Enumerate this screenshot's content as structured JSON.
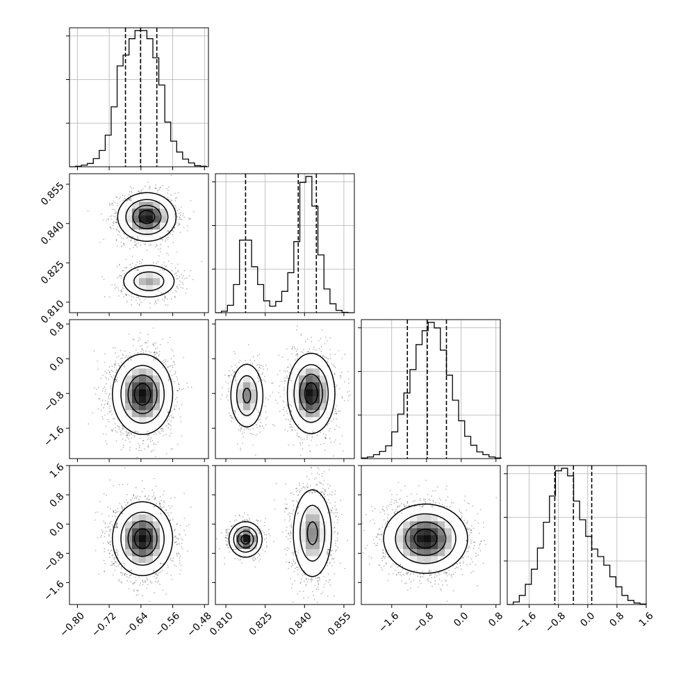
{
  "chart_data": {
    "type": "corner",
    "parameters": [
      {
        "range": [
          -0.82,
          -0.47
        ],
        "ticks": [
          -0.8,
          -0.72,
          -0.64,
          -0.56,
          -0.48
        ],
        "tick_labels": [
          "−0.80",
          "−0.72",
          "−0.64",
          "−0.56",
          "−0.48"
        ]
      },
      {
        "range": [
          0.806,
          0.859
        ],
        "ticks": [
          0.81,
          0.825,
          0.84,
          0.855
        ],
        "tick_labels": [
          "0.810",
          "0.825",
          "0.840",
          "0.855"
        ]
      },
      {
        "range": [
          -2.3,
          0.9
        ],
        "ticks": [
          -1.6,
          -0.8,
          0.0,
          0.8
        ],
        "tick_labels": [
          "−1.6",
          "−0.8",
          "0.0",
          "0.8"
        ]
      },
      {
        "range": [
          -2.2,
          1.6
        ],
        "ticks": [
          -1.6,
          -0.8,
          0.0,
          0.8,
          1.6
        ],
        "tick_labels": [
          "−1.6",
          "−0.8",
          "0.0",
          "0.8",
          "1.6"
        ]
      }
    ],
    "histograms": [
      {
        "param": 0,
        "bins": [
          -0.82,
          -0.805,
          -0.79,
          -0.775,
          -0.76,
          -0.745,
          -0.73,
          -0.715,
          -0.7,
          -0.685,
          -0.67,
          -0.655,
          -0.64,
          -0.625,
          -0.61,
          -0.595,
          -0.58,
          -0.565,
          -0.55,
          -0.535,
          -0.52,
          -0.505,
          -0.49,
          -0.475
        ],
        "counts": [
          0,
          1,
          3,
          6,
          15,
          30,
          58,
          110,
          185,
          205,
          235,
          250,
          250,
          235,
          200,
          150,
          82,
          47,
          27,
          14,
          7,
          2,
          1
        ],
        "quantiles": [
          -0.679,
          -0.641,
          -0.6
        ]
      },
      {
        "param": 1,
        "bins": [
          0.806,
          0.8083,
          0.8106,
          0.8129,
          0.8152,
          0.8175,
          0.8198,
          0.8221,
          0.8244,
          0.8267,
          0.829,
          0.8313,
          0.8336,
          0.8359,
          0.8382,
          0.8405,
          0.8428,
          0.8451,
          0.8474,
          0.8497,
          0.852,
          0.8543,
          0.8566,
          0.859
        ],
        "counts": [
          0,
          5,
          25,
          95,
          245,
          245,
          155,
          95,
          40,
          22,
          38,
          72,
          135,
          240,
          440,
          460,
          360,
          195,
          80,
          30,
          8,
          1,
          0
        ],
        "quantiles": [
          0.8175,
          0.8376,
          0.8445
        ]
      },
      {
        "param": 2,
        "bins": [
          -2.3,
          -2.16,
          -2.02,
          -1.88,
          -1.74,
          -1.6,
          -1.46,
          -1.32,
          -1.18,
          -1.04,
          -0.9,
          -0.76,
          -0.62,
          -0.48,
          -0.34,
          -0.2,
          -0.06,
          0.08,
          0.22,
          0.36,
          0.5,
          0.64,
          0.78,
          0.92
        ],
        "counts": [
          1,
          3,
          7,
          13,
          23,
          48,
          80,
          118,
          160,
          205,
          230,
          245,
          235,
          195,
          150,
          105,
          68,
          40,
          24,
          12,
          7,
          3,
          1
        ],
        "quantiles": [
          -1.24,
          -0.78,
          -0.34
        ]
      },
      {
        "param": 3,
        "bins": [
          -2.2,
          -2.035,
          -1.87,
          -1.705,
          -1.54,
          -1.375,
          -1.21,
          -1.045,
          -0.88,
          -0.715,
          -0.55,
          -0.385,
          -0.22,
          -0.055,
          0.11,
          0.275,
          0.44,
          0.605,
          0.77,
          0.935,
          1.1,
          1.265,
          1.43,
          1.6
        ],
        "counts": [
          0,
          5,
          18,
          40,
          70,
          112,
          163,
          215,
          265,
          270,
          255,
          205,
          168,
          135,
          110,
          95,
          78,
          55,
          35,
          18,
          8,
          3,
          1
        ],
        "quantiles": [
          -0.9,
          -0.39,
          0.11
        ]
      }
    ],
    "pairs": [
      {
        "x": 0,
        "y": 1,
        "clusters": [
          {
            "cx": -0.625,
            "cy": 0.8425,
            "sx": 0.035,
            "sy": 0.0044,
            "weight": 0.7
          },
          {
            "cx": -0.62,
            "cy": 0.818,
            "sx": 0.035,
            "sy": 0.0033,
            "weight": 0.3
          }
        ]
      },
      {
        "x": 0,
        "y": 2,
        "clusters": [
          {
            "cx": -0.636,
            "cy": -0.82,
            "sx": 0.036,
            "sy": 0.44,
            "weight": 1.0
          }
        ]
      },
      {
        "x": 1,
        "y": 2,
        "clusters": [
          {
            "cx": 0.818,
            "cy": -0.85,
            "sx": 0.0032,
            "sy": 0.38,
            "weight": 0.3
          },
          {
            "cx": 0.8425,
            "cy": -0.8,
            "sx": 0.0043,
            "sy": 0.44,
            "weight": 0.7
          }
        ]
      },
      {
        "x": 0,
        "y": 3,
        "clusters": [
          {
            "cx": -0.636,
            "cy": -0.4,
            "sx": 0.036,
            "sy": 0.48,
            "weight": 1.0
          }
        ]
      },
      {
        "x": 1,
        "y": 3,
        "clusters": [
          {
            "cx": 0.8175,
            "cy": -0.42,
            "sx": 0.003,
            "sy": 0.23,
            "weight": 0.3
          },
          {
            "cx": 0.843,
            "cy": -0.25,
            "sx": 0.0038,
            "sy": 0.62,
            "weight": 0.7
          }
        ]
      },
      {
        "x": 2,
        "y": 3,
        "clusters": [
          {
            "cx": -0.82,
            "cy": -0.4,
            "sx": 0.46,
            "sy": 0.45,
            "weight": 1.0
          }
        ]
      }
    ],
    "grid": true,
    "legend": "none"
  }
}
